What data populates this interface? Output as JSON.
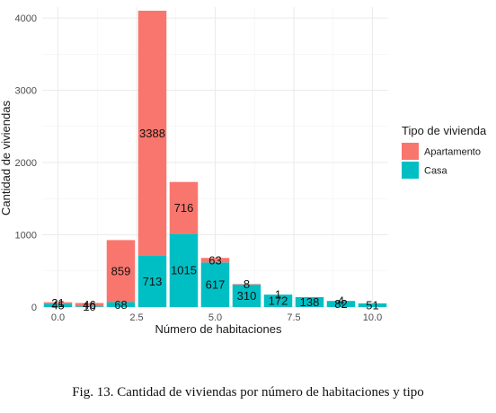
{
  "caption": "Fig. 13.  Cantidad de viviendas por número de habitaciones y tipo",
  "chart_data": {
    "type": "bar",
    "stacked": true,
    "xlabel": "Número de habitaciones",
    "ylabel": "Cantidad de viviendas",
    "x": [
      0,
      1,
      2,
      3,
      4,
      5,
      6,
      7,
      8,
      9,
      10
    ],
    "xlim": [
      -0.5,
      10.5
    ],
    "ylim": [
      0,
      4150
    ],
    "xticks": [
      "0.0",
      "2.5",
      "5.0",
      "7.5",
      "10.0"
    ],
    "xtick_values": [
      0,
      2.5,
      5,
      7.5,
      10
    ],
    "yticks": [
      "0",
      "1000",
      "2000",
      "3000",
      "4000"
    ],
    "ytick_values": [
      0,
      1000,
      2000,
      3000,
      4000
    ],
    "grid": true,
    "legend": {
      "title": "Tipo de vivienda",
      "position": "right"
    },
    "series": [
      {
        "name": "Casa",
        "color": "#00BFC4",
        "values": [
          45,
          10,
          68,
          713,
          1015,
          617,
          310,
          172,
          138,
          82,
          51
        ]
      },
      {
        "name": "Apartamento",
        "color": "#F8766D",
        "values": [
          21,
          46,
          859,
          3388,
          716,
          63,
          8,
          1,
          0,
          4,
          0
        ]
      }
    ]
  }
}
